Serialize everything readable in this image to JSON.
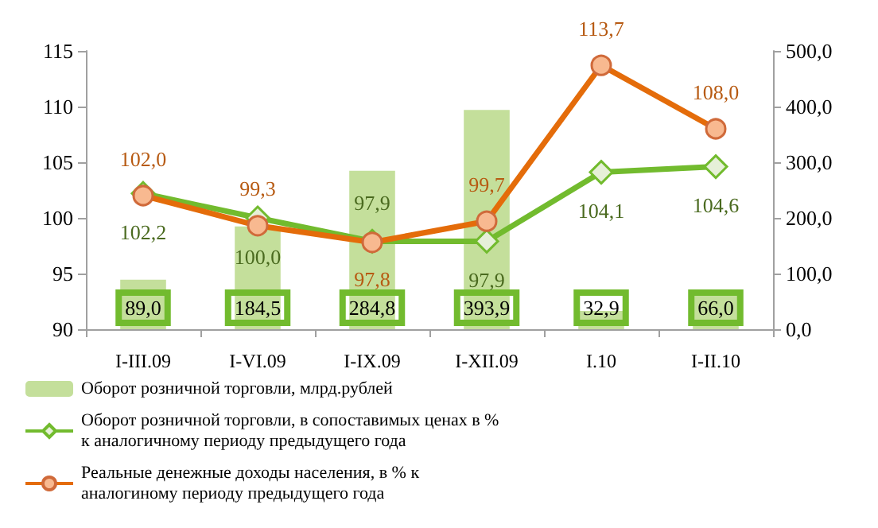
{
  "chart_data": {
    "type": "bar",
    "categories": [
      "I-III.09",
      "I-VI.09",
      "I-IX.09",
      "I-XII.09",
      "I.10",
      "I-II.10"
    ],
    "series": [
      {
        "name": "Оборот розничной торговли, млрд.рублей",
        "axis": "y2",
        "color": "#c4df9b",
        "values": [
          89.0,
          184.5,
          284.8,
          393.9,
          32.9,
          66.0
        ],
        "value_labels": [
          "89,0",
          "184,5",
          "284,8",
          "393,9",
          "32,9",
          "66,0"
        ]
      },
      {
        "name": "Оборот розничной торговли, в сопоставимых ценах в % к аналогичному периоду предыдущего года",
        "type": "line",
        "color": "#72bb2e",
        "marker": "diamond",
        "values": [
          102.2,
          100.0,
          97.9,
          97.9,
          104.1,
          104.6
        ],
        "value_labels": [
          "102,2",
          "100,0",
          "97,9",
          "97,9",
          "104,1",
          "104,6"
        ]
      },
      {
        "name": "Реальные денежные доходы населения, в % к аналогиному периоду предыдущего года",
        "type": "line",
        "color": "#e46c0a",
        "marker": "circle",
        "values": [
          102.0,
          99.3,
          97.8,
          99.7,
          113.7,
          108.0
        ],
        "value_labels": [
          "102,0",
          "99,3",
          "97,8",
          "99,7",
          "113,7",
          "108,0"
        ]
      }
    ],
    "ylim": [
      90,
      115
    ],
    "yticks": [
      90,
      95,
      100,
      105,
      110,
      115
    ],
    "y2lim": [
      0,
      500
    ],
    "y2ticks": [
      {
        "value": 0,
        "label": "0,0"
      },
      {
        "value": 100,
        "label": "100,0"
      },
      {
        "value": 200,
        "label": "200,0"
      },
      {
        "value": 300,
        "label": "300,0"
      },
      {
        "value": 400,
        "label": "400,0"
      },
      {
        "value": 500,
        "label": "500,0"
      }
    ],
    "grid": false,
    "legend": "bottom",
    "line_style": "solid"
  }
}
